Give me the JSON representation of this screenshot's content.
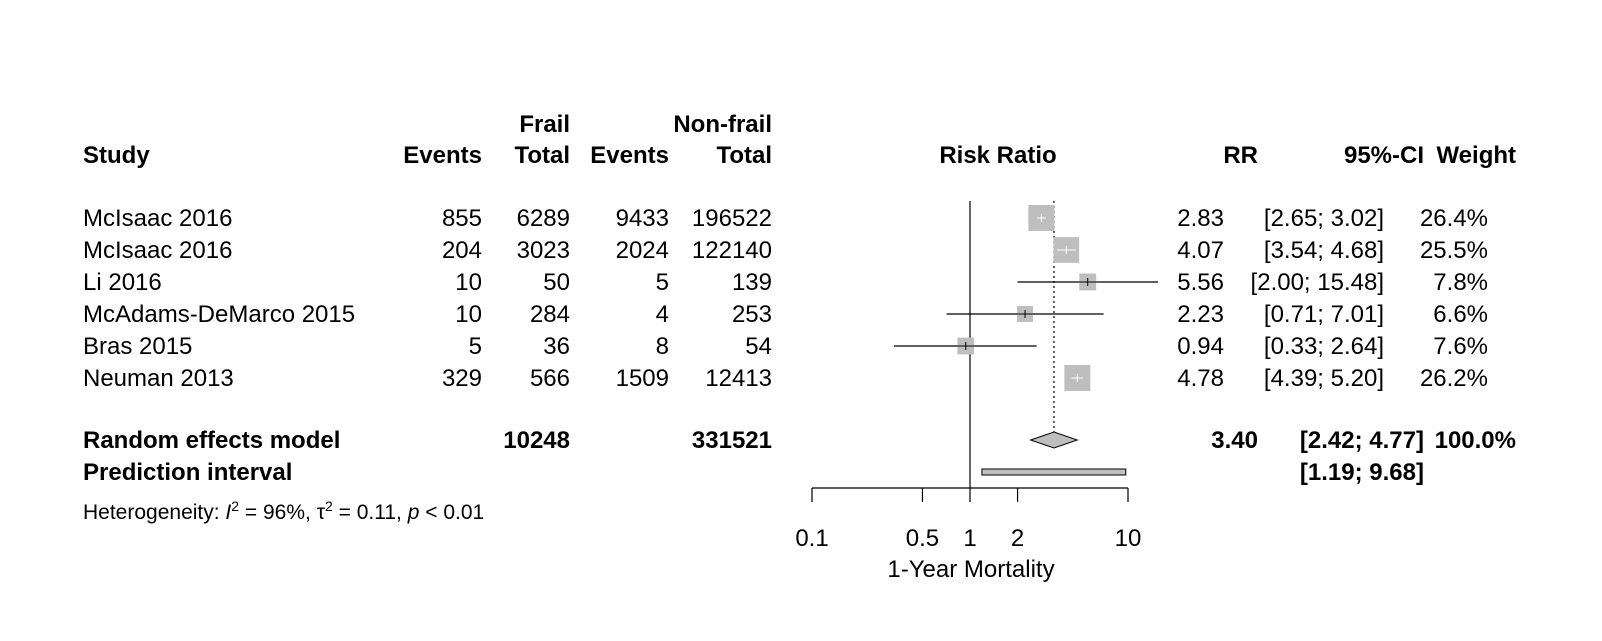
{
  "headers": {
    "study": "Study",
    "group1": "Frail",
    "group2": "Non-frail",
    "events": "Events",
    "total": "Total",
    "effect": "Risk Ratio",
    "rr": "RR",
    "ci": "95%-CI",
    "weight": "Weight"
  },
  "pooled": {
    "label": "Random effects model",
    "total1": "10248",
    "total2": "331521",
    "rr": "3.40",
    "ci": "[2.42;  4.77]",
    "weight": "100.0%"
  },
  "prediction": {
    "label": "Prediction interval",
    "ci": "[1.19;  9.68]"
  },
  "heterogeneity": {
    "prefix": "Heterogeneity: ",
    "i2_symbol": "I",
    "i2_rest": " = 96%, ",
    "tau_symbol": "τ",
    "tau_rest": " = 0.11, ",
    "p_symbol": "p",
    "p_rest": " < 0.01"
  },
  "chart_data": {
    "type": "forest",
    "xlabel": "1-Year Mortality",
    "log_scale": true,
    "xlim": [
      0.1,
      10
    ],
    "ticks": [
      {
        "value": 0.1,
        "label": "0.1"
      },
      {
        "value": 0.5,
        "label": "0.5"
      },
      {
        "value": 1,
        "label": "1"
      },
      {
        "value": 2,
        "label": "2"
      },
      {
        "value": 10,
        "label": "10"
      }
    ],
    "null_line": 1,
    "studies": [
      {
        "label": "McIsaac 2016",
        "events1": "855",
        "total1": "6289",
        "events2": "9433",
        "total2": "196522",
        "rr_text": "2.83",
        "ci_text": "[2.65;  3.02]",
        "weight_text": "26.4%",
        "rr": 2.83,
        "lower": 2.65,
        "upper": 3.02,
        "weight": 26.4
      },
      {
        "label": "McIsaac 2016",
        "events1": "204",
        "total1": "3023",
        "events2": "2024",
        "total2": "122140",
        "rr_text": "4.07",
        "ci_text": "[3.54;  4.68]",
        "weight_text": "25.5%",
        "rr": 4.07,
        "lower": 3.54,
        "upper": 4.68,
        "weight": 25.5
      },
      {
        "label": "Li 2016",
        "events1": "10",
        "total1": "50",
        "events2": "5",
        "total2": "139",
        "rr_text": "5.56",
        "ci_text": "[2.00; 15.48]",
        "weight_text": "7.8%",
        "rr": 5.56,
        "lower": 2.0,
        "upper": 15.48,
        "weight": 7.8
      },
      {
        "label": "McAdams-DeMarco 2015",
        "events1": "10",
        "total1": "284",
        "events2": "4",
        "total2": "253",
        "rr_text": "2.23",
        "ci_text": "[0.71;  7.01]",
        "weight_text": "6.6%",
        "rr": 2.23,
        "lower": 0.71,
        "upper": 7.01,
        "weight": 6.6
      },
      {
        "label": "Bras 2015",
        "events1": "5",
        "total1": "36",
        "events2": "8",
        "total2": "54",
        "rr_text": "0.94",
        "ci_text": "[0.33;  2.64]",
        "weight_text": "7.6%",
        "rr": 0.94,
        "lower": 0.33,
        "upper": 2.64,
        "weight": 7.6
      },
      {
        "label": "Neuman 2013",
        "events1": "329",
        "total1": "566",
        "events2": "1509",
        "total2": "12413",
        "rr_text": "4.78",
        "ci_text": "[4.39;  5.20]",
        "weight_text": "26.2%",
        "rr": 4.78,
        "lower": 4.39,
        "upper": 5.2,
        "weight": 26.2
      }
    ],
    "pooled": {
      "rr": 3.4,
      "lower": 2.42,
      "upper": 4.77
    },
    "prediction_interval": {
      "lower": 1.19,
      "upper": 9.68
    },
    "colors": {
      "square": "#bebebe",
      "diamond": "#bebebe",
      "line": "#000000"
    }
  }
}
